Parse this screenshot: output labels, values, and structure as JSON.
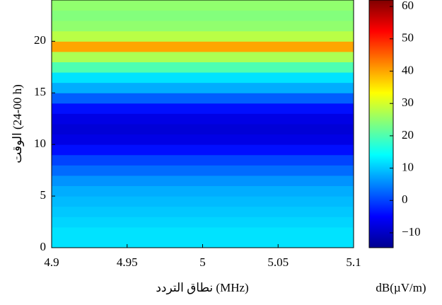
{
  "chart_data": {
    "type": "heatmap",
    "xlabel": "نطاق التردد (MHz)",
    "ylabel": "الوقت (00-24 h)",
    "colorbar_label": "dB(µV/m)",
    "xlim": [
      4.9,
      5.1
    ],
    "xticks": [
      4.9,
      4.95,
      5,
      5.05,
      5.1
    ],
    "ylim": [
      0,
      24
    ],
    "yticks": [
      0,
      5,
      10,
      15,
      20
    ],
    "y_bins": [
      0,
      1,
      2,
      3,
      4,
      5,
      6,
      7,
      8,
      9,
      10,
      11,
      12,
      13,
      14,
      15,
      16,
      17,
      18,
      19,
      20,
      21,
      22,
      23,
      24
    ],
    "values": [
      12,
      12,
      11,
      10,
      9,
      8,
      6,
      3,
      0,
      -4,
      -7,
      -8,
      -7,
      -4,
      2,
      8,
      12,
      20,
      27,
      40,
      28,
      25,
      24,
      25
    ],
    "clim": [
      -14.6,
      62
    ],
    "cticks": [
      {
        "value": -10,
        "label": "−10"
      },
      0,
      10,
      20,
      30,
      40,
      50,
      60
    ],
    "colormap": "jet"
  }
}
